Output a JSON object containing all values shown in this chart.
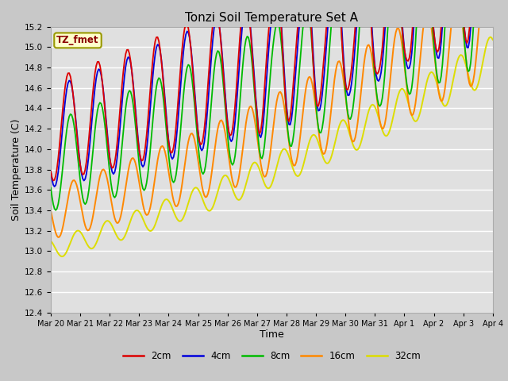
{
  "title": "Tonzi Soil Temperature Set A",
  "xlabel": "Time",
  "ylabel": "Soil Temperature (C)",
  "ylim": [
    12.4,
    15.2
  ],
  "fig_bg": "#c8c8c8",
  "plot_bg": "#e0e0e0",
  "grid_color": "white",
  "line_colors": {
    "2cm": "#dd0000",
    "4cm": "#0000dd",
    "8cm": "#00bb00",
    "16cm": "#ff8800",
    "32cm": "#dddd00"
  },
  "legend_label": "TZ_fmet",
  "legend_bg": "#ffffcc",
  "legend_border": "#999900",
  "dates": [
    "Mar 20",
    "Mar 21",
    "Mar 22",
    "Mar 23",
    "Mar 24",
    "Mar 25",
    "Mar 26",
    "Mar 27",
    "Mar 28",
    "Mar 29",
    "Mar 30",
    "Mar 31",
    "Apr 1",
    "Apr 2",
    "Apr 3",
    "Apr 4"
  ],
  "n_days": 15
}
